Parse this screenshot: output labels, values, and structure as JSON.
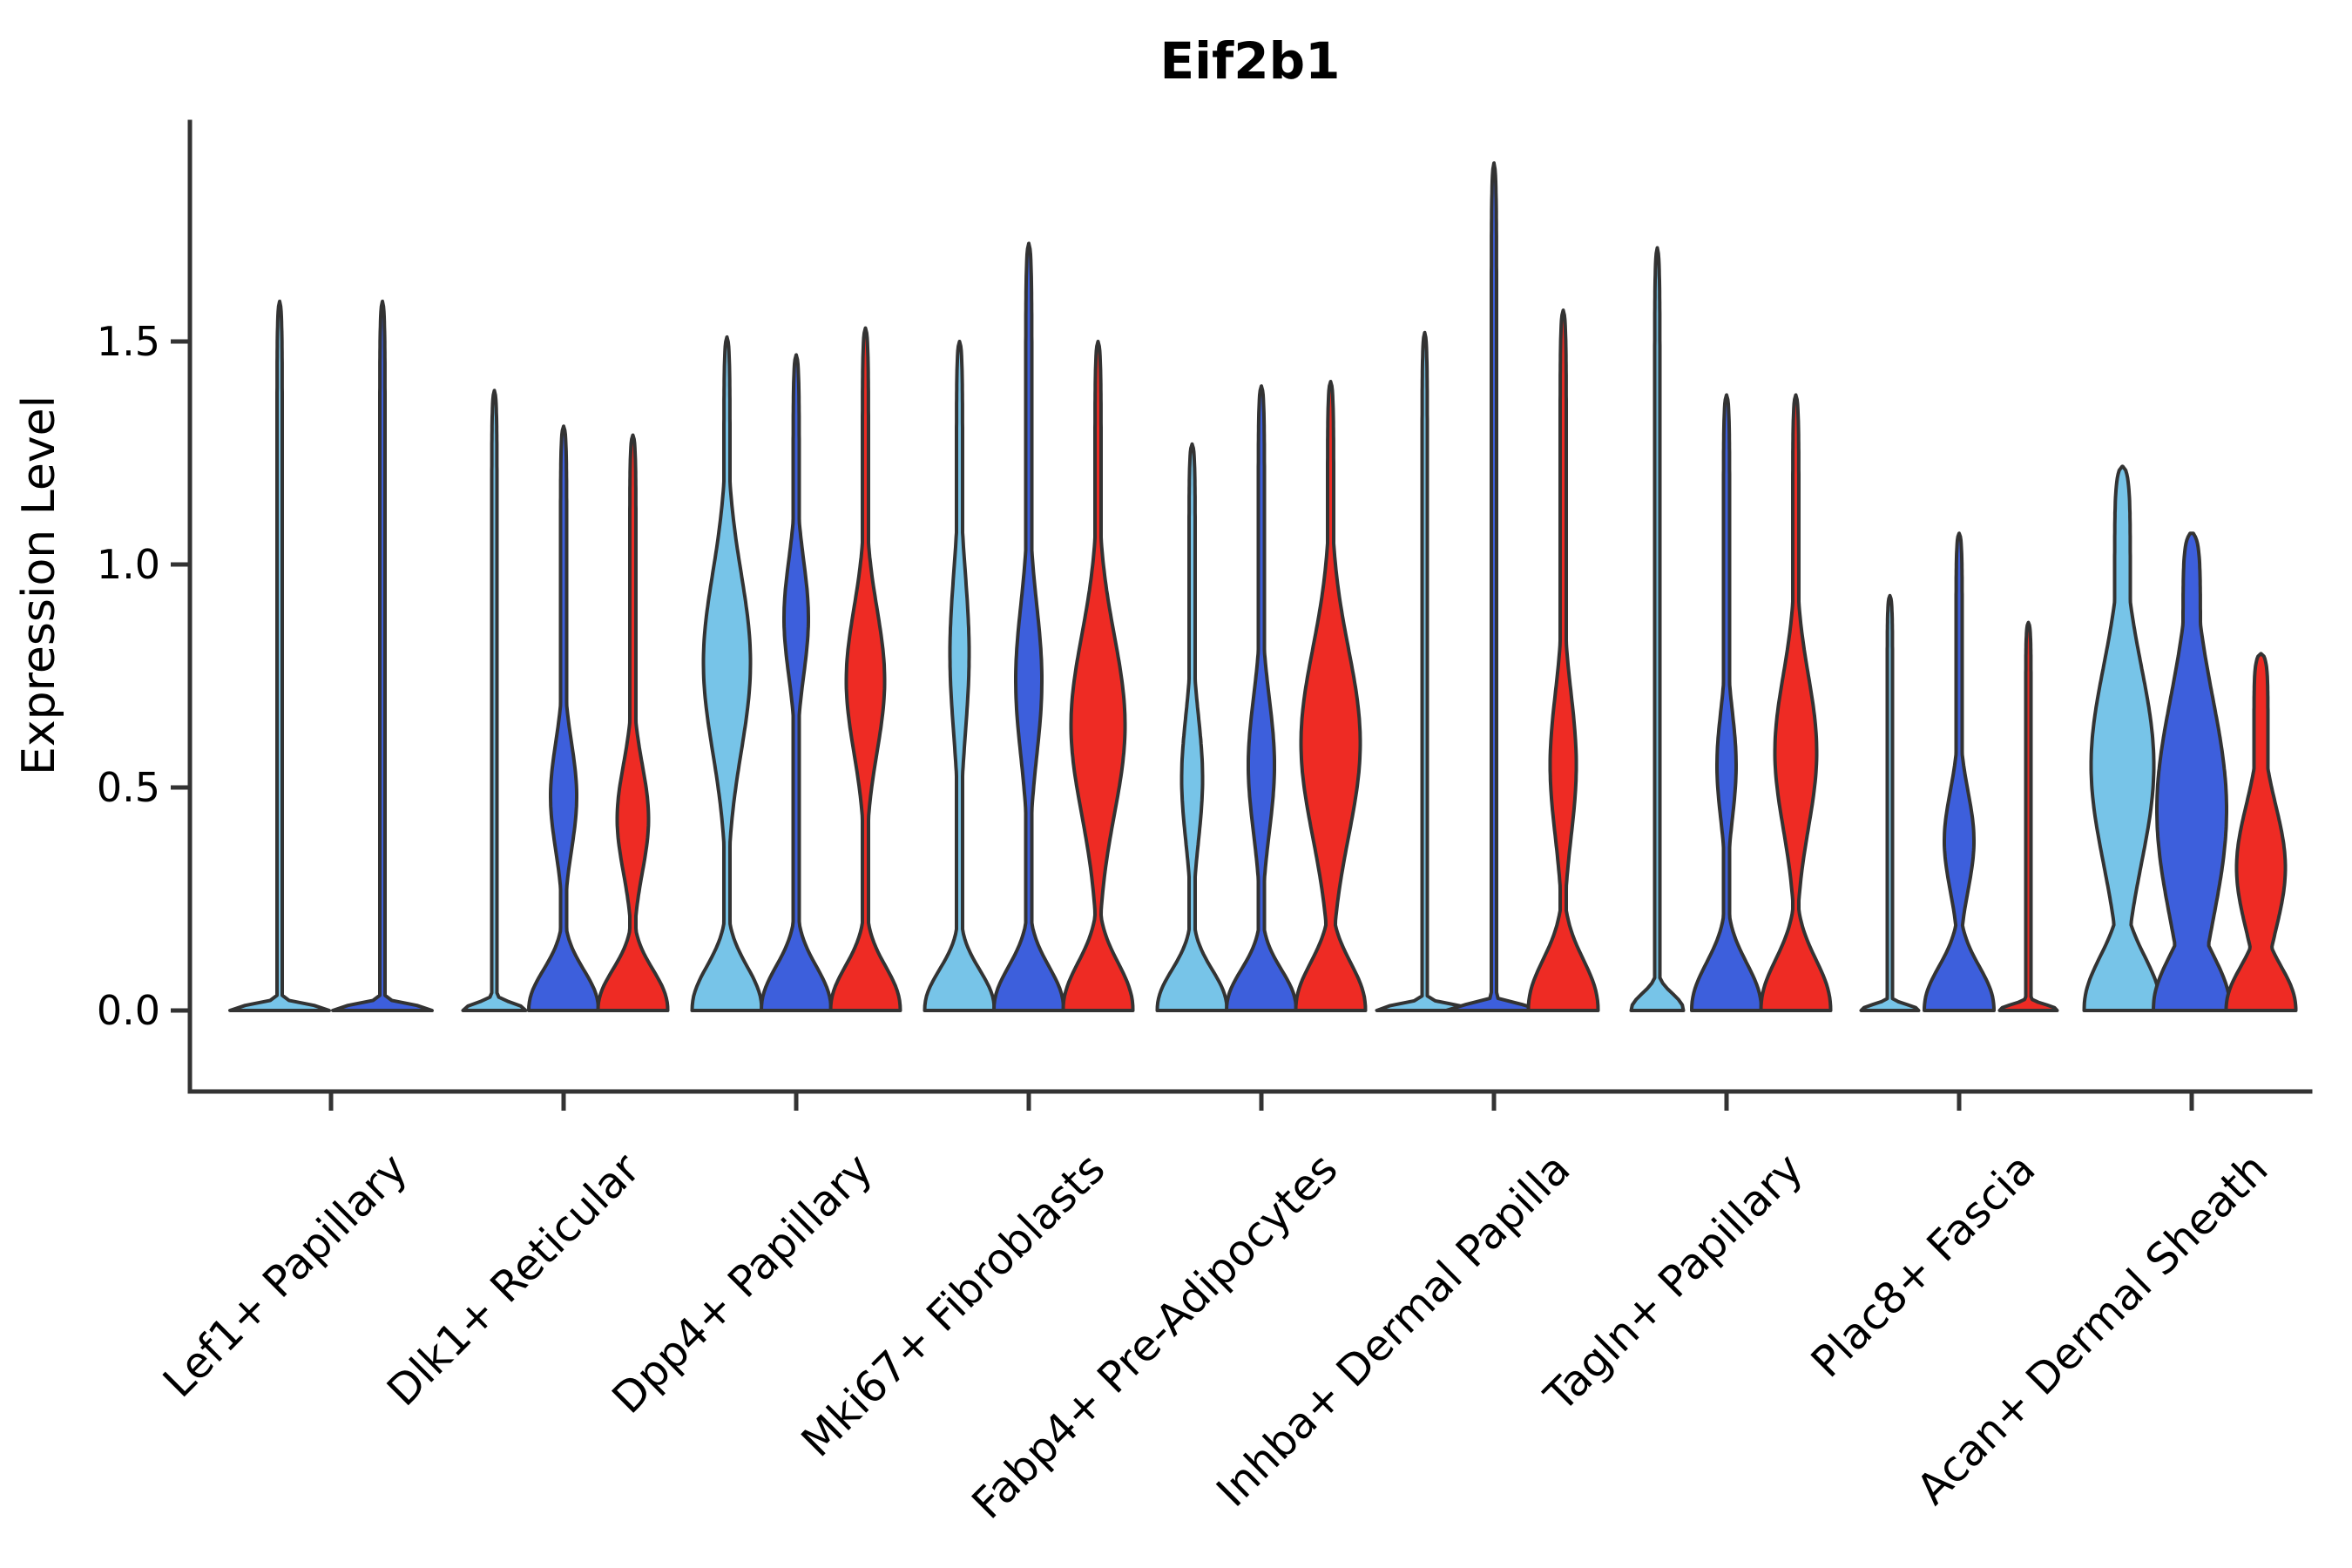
{
  "chart_data": {
    "type": "violin",
    "title": "Eif2b1",
    "xlabel": "",
    "ylabel": "Expression Level",
    "yticks": [
      0.0,
      0.5,
      1.0,
      1.5
    ],
    "ylim": [
      -0.07,
      1.99
    ],
    "grid": false,
    "legend": "none",
    "categories": [
      "Lef1+ Papillary",
      "Dlk1+ Reticular",
      "Dpp4+ Papillary",
      "Mki67+ Fibroblasts",
      "Fabp4+ Pre-Adipocytes",
      "Inhba+ Dermal Papilla",
      "Tagln+ Papillary",
      "Plac8+ Fascia",
      "Acan+ Dermal Sheath"
    ],
    "series": [
      {
        "id": "light-blue",
        "color": "#77C4E8"
      },
      {
        "id": "dark-blue",
        "color": "#3D5FDC"
      },
      {
        "id": "red",
        "color": "#EE2B24"
      }
    ],
    "stroke_color": "#333333",
    "groups": [
      {
        "category": "Lef1+ Papillary",
        "violins": [
          {
            "series": "light-blue",
            "max_expression": 1.59,
            "dx": -59,
            "stem_halfwidth": 3,
            "bulge": null,
            "base": {
              "height": 0.018,
              "halfwidth": 57
            }
          },
          {
            "series": "dark-blue",
            "max_expression": 1.59,
            "dx": 59,
            "stem_halfwidth": 3,
            "bulge": null,
            "base": {
              "height": 0.018,
              "halfwidth": 57
            }
          }
        ]
      },
      {
        "category": "Dlk1+ Reticular",
        "violins": [
          {
            "series": "light-blue",
            "max_expression": 1.39,
            "dx": -79.5,
            "stem_halfwidth": 3,
            "bulge": null,
            "base": {
              "height": 0.022,
              "halfwidth": 36
            }
          },
          {
            "series": "dark-blue",
            "max_expression": 1.31,
            "dx": 0,
            "stem_halfwidth": 3.5,
            "bulge": {
              "center": 0.48,
              "spread": 0.12,
              "halfwidth": 15
            },
            "base": {
              "height": 0.12,
              "halfwidth": 40
            }
          },
          {
            "series": "red",
            "max_expression": 1.29,
            "dx": 79.5,
            "stem_halfwidth": 3.5,
            "bulge": {
              "center": 0.43,
              "spread": 0.12,
              "halfwidth": 18
            },
            "base": {
              "height": 0.12,
              "halfwidth": 40
            }
          }
        ]
      },
      {
        "category": "Dpp4+ Papillary",
        "violins": [
          {
            "series": "light-blue",
            "max_expression": 1.51,
            "dx": -79.5,
            "stem_halfwidth": 3.5,
            "bulge": {
              "center": 0.78,
              "spread": 0.2,
              "halfwidth": 27
            },
            "base": {
              "height": 0.13,
              "halfwidth": 40
            }
          },
          {
            "series": "dark-blue",
            "max_expression": 1.47,
            "dx": 0,
            "stem_halfwidth": 3.5,
            "bulge": {
              "center": 0.88,
              "spread": 0.13,
              "halfwidth": 14
            },
            "base": {
              "height": 0.13,
              "halfwidth": 40
            }
          },
          {
            "series": "red",
            "max_expression": 1.53,
            "dx": 79.5,
            "stem_halfwidth": 3.5,
            "bulge": {
              "center": 0.74,
              "spread": 0.16,
              "halfwidth": 22
            },
            "base": {
              "height": 0.13,
              "halfwidth": 40
            }
          }
        ]
      },
      {
        "category": "Mki67+ Fibroblasts",
        "violins": [
          {
            "series": "light-blue",
            "max_expression": 1.5,
            "dx": -79.5,
            "stem_halfwidth": 3.5,
            "bulge": {
              "center": 0.8,
              "spread": 0.18,
              "halfwidth": 11
            },
            "base": {
              "height": 0.12,
              "halfwidth": 40
            }
          },
          {
            "series": "dark-blue",
            "max_expression": 1.72,
            "dx": 0,
            "stem_halfwidth": 3.5,
            "bulge": {
              "center": 0.74,
              "spread": 0.17,
              "halfwidth": 15
            },
            "base": {
              "height": 0.13,
              "halfwidth": 40
            }
          },
          {
            "series": "red",
            "max_expression": 1.5,
            "dx": 79.5,
            "stem_halfwidth": 3.5,
            "bulge": {
              "center": 0.64,
              "spread": 0.2,
              "halfwidth": 31
            },
            "base": {
              "height": 0.14,
              "halfwidth": 40
            }
          }
        ]
      },
      {
        "category": "Fabp4+ Pre-Adipocytes",
        "violins": [
          {
            "series": "light-blue",
            "max_expression": 1.27,
            "dx": -79.5,
            "stem_halfwidth": 3.5,
            "bulge": {
              "center": 0.52,
              "spread": 0.14,
              "halfwidth": 12
            },
            "base": {
              "height": 0.12,
              "halfwidth": 40
            }
          },
          {
            "series": "dark-blue",
            "max_expression": 1.4,
            "dx": 0,
            "stem_halfwidth": 3.5,
            "bulge": {
              "center": 0.55,
              "spread": 0.15,
              "halfwidth": 15
            },
            "base": {
              "height": 0.12,
              "halfwidth": 40
            }
          },
          {
            "series": "red",
            "max_expression": 1.41,
            "dx": 79.5,
            "stem_halfwidth": 3.5,
            "bulge": {
              "center": 0.6,
              "spread": 0.21,
              "halfwidth": 34
            },
            "base": {
              "height": 0.14,
              "halfwidth": 40
            }
          }
        ]
      },
      {
        "category": "Inhba+ Dermal Papilla",
        "violins": [
          {
            "series": "light-blue",
            "max_expression": 1.52,
            "dx": -79.5,
            "stem_halfwidth": 3,
            "bulge": null,
            "base": {
              "height": 0.018,
              "halfwidth": 55
            }
          },
          {
            "series": "dark-blue",
            "max_expression": 1.9,
            "dx": 0,
            "stem_halfwidth": 3,
            "bulge": null,
            "base": {
              "height": 0.018,
              "halfwidth": 55
            }
          },
          {
            "series": "red",
            "max_expression": 1.57,
            "dx": 79.5,
            "stem_halfwidth": 3.5,
            "bulge": {
              "center": 0.55,
              "spread": 0.16,
              "halfwidth": 15
            },
            "base": {
              "height": 0.15,
              "halfwidth": 40
            }
          }
        ]
      },
      {
        "category": "Tagln+ Papillary",
        "violins": [
          {
            "series": "light-blue",
            "max_expression": 1.71,
            "dx": -79.5,
            "stem_halfwidth": 3,
            "bulge": null,
            "base": {
              "height": 0.05,
              "halfwidth": 30
            }
          },
          {
            "series": "dark-blue",
            "max_expression": 1.38,
            "dx": 0,
            "stem_halfwidth": 3.5,
            "bulge": {
              "center": 0.55,
              "spread": 0.12,
              "halfwidth": 11
            },
            "base": {
              "height": 0.14,
              "halfwidth": 40
            }
          },
          {
            "series": "red",
            "max_expression": 1.38,
            "dx": 79.5,
            "stem_halfwidth": 3.5,
            "bulge": {
              "center": 0.58,
              "spread": 0.17,
              "halfwidth": 24
            },
            "base": {
              "height": 0.15,
              "halfwidth": 40
            }
          }
        ]
      },
      {
        "category": "Plac8+ Fascia",
        "violins": [
          {
            "series": "light-blue",
            "max_expression": 0.93,
            "dx": -79.5,
            "stem_halfwidth": 3,
            "bulge": null,
            "base": {
              "height": 0.018,
              "halfwidth": 33
            }
          },
          {
            "series": "dark-blue",
            "max_expression": 1.07,
            "dx": 0,
            "stem_halfwidth": 3.5,
            "bulge": {
              "center": 0.38,
              "spread": 0.11,
              "halfwidth": 17
            },
            "base": {
              "height": 0.13,
              "halfwidth": 40
            }
          },
          {
            "series": "red",
            "max_expression": 0.87,
            "dx": 79.5,
            "stem_halfwidth": 3,
            "bulge": null,
            "base": {
              "height": 0.018,
              "halfwidth": 33
            }
          }
        ]
      },
      {
        "category": "Acan+ Dermal Sheath",
        "violins": [
          {
            "series": "light-blue",
            "max_expression": 1.22,
            "dx": -79.5,
            "stem_halfwidth": 9,
            "bulge": {
              "center": 0.55,
              "spread": 0.22,
              "halfwidth": 36
            },
            "base": {
              "height": 0.16,
              "halfwidth": 44
            }
          },
          {
            "series": "dark-blue",
            "max_expression": 1.07,
            "dx": 0,
            "stem_halfwidth": 10,
            "bulge": {
              "center": 0.45,
              "spread": 0.25,
              "halfwidth": 40
            },
            "base": {
              "height": 0.16,
              "halfwidth": 44
            }
          },
          {
            "series": "red",
            "max_expression": 0.8,
            "dx": 79.5,
            "stem_halfwidth": 8,
            "bulge": {
              "center": 0.32,
              "spread": 0.14,
              "halfwidth": 28
            },
            "base": {
              "height": 0.13,
              "halfwidth": 40
            }
          }
        ]
      }
    ]
  }
}
